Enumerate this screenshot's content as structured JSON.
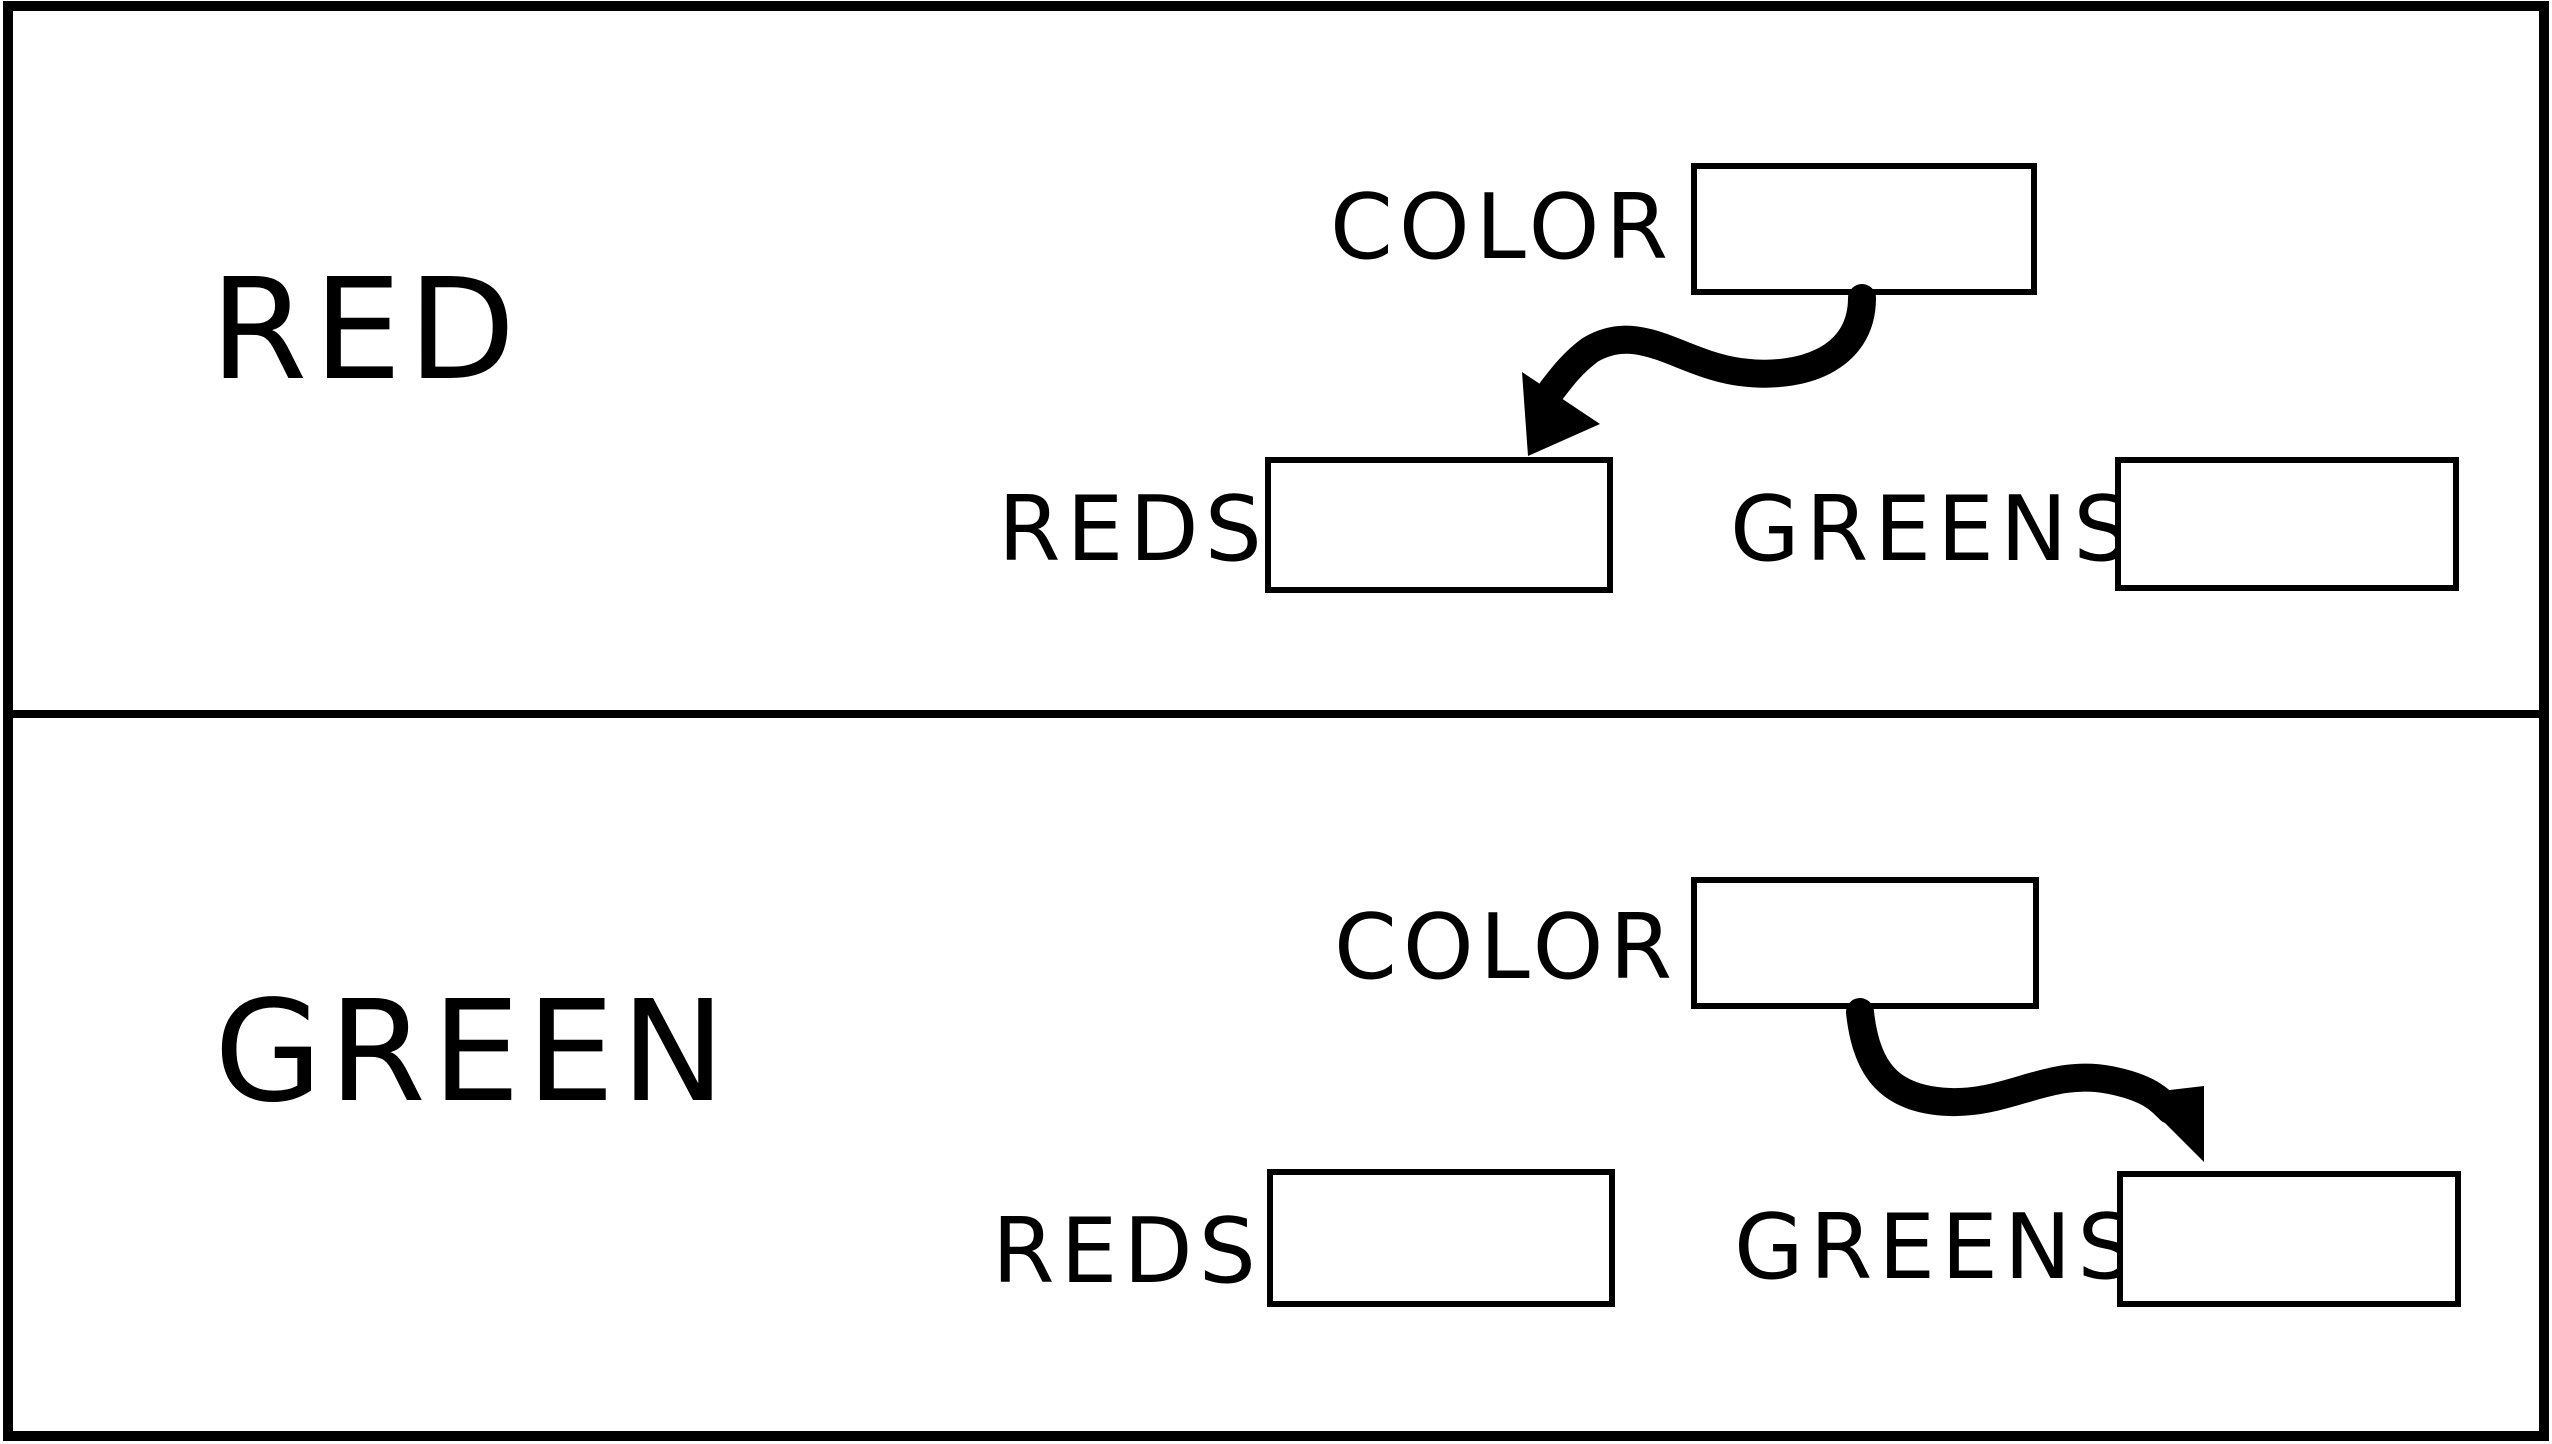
{
  "panels": [
    {
      "value_label": "RED",
      "color_label": "COLOR",
      "reds_label": "REDS",
      "greens_label": "GREENS",
      "arrow_target": "REDS"
    },
    {
      "value_label": "GREEN",
      "color_label": "COLOR",
      "reds_label": "REDS",
      "greens_label": "GREENS",
      "arrow_target": "GREENS"
    }
  ],
  "colors": {
    "ink": "#000000",
    "background": "#ffffff"
  }
}
